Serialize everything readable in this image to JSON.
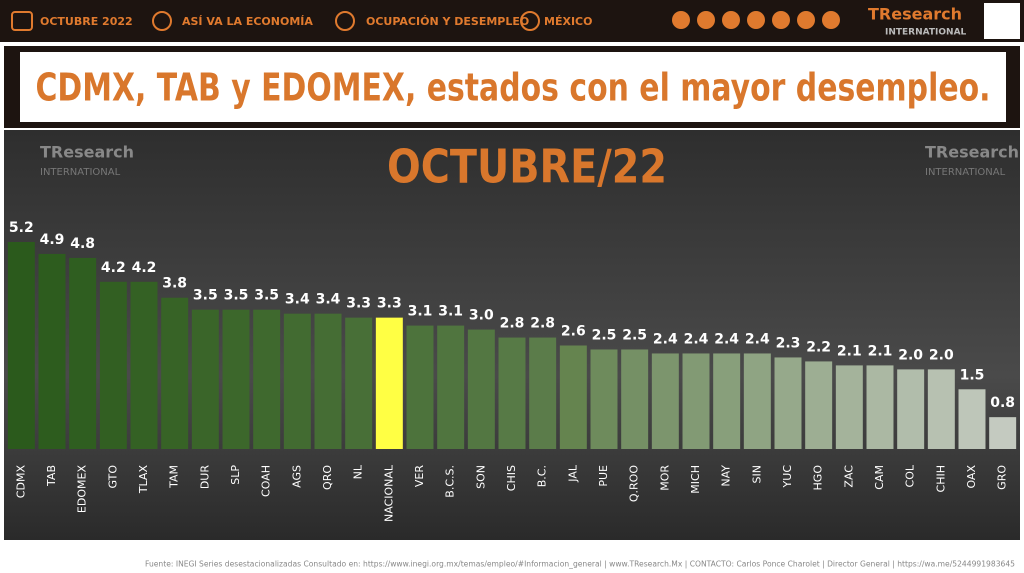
{
  "header": {
    "date": "OCTUBRE 2022",
    "section": "ASÍ VA LA ECONOMÍA",
    "topic": "OCUPACIÓN Y DESEMPLEO",
    "country": "MÉXICO",
    "brand": "TResearch",
    "brand_sub": "INTERNATIONAL"
  },
  "chart_data": {
    "type": "bar",
    "title": "CDMX, TAB y EDOMEX, estados con el mayor desempleo.",
    "subtitle": "OCTUBRE/22",
    "categories": [
      "CDMX",
      "TAB",
      "EDOMEX",
      "GTO",
      "TLAX",
      "TAM",
      "DUR",
      "SLP",
      "COAH",
      "AGS",
      "QRO",
      "NL",
      "NACIONAL",
      "VER",
      "B.C.S.",
      "SON",
      "CHIS",
      "B.C.",
      "JAL",
      "PUE",
      "Q.ROO",
      "MOR",
      "MICH",
      "NAY",
      "SIN",
      "YUC",
      "HGO",
      "ZAC",
      "CAM",
      "COL",
      "CHIH",
      "OAX",
      "GRO"
    ],
    "values": [
      5.2,
      4.9,
      4.8,
      4.2,
      4.2,
      3.8,
      3.5,
      3.5,
      3.5,
      3.4,
      3.4,
      3.3,
      3.3,
      3.1,
      3.1,
      3.0,
      2.8,
      2.8,
      2.6,
      2.5,
      2.5,
      2.4,
      2.4,
      2.4,
      2.4,
      2.3,
      2.2,
      2.1,
      2.1,
      2.0,
      2.0,
      1.5,
      0.8
    ],
    "value_labels": [
      "5.2",
      "4.9",
      "4.8",
      "4.2",
      "4.2",
      "3.8",
      "3.5",
      "3.5",
      "3.5",
      "3.4",
      "3.4",
      "3.3",
      "3.3",
      "3.1",
      "3.1",
      "3.0",
      "2.8",
      "2.8",
      "2.6",
      "2.5",
      "2.5",
      "2.4",
      "2.4",
      "2.4",
      "2.4",
      "2.3",
      "2.2",
      "2.1",
      "2.1",
      "2.0",
      "2.0",
      "1.5",
      "0.8"
    ],
    "colors": [
      "#2b5a1c",
      "#2d5c1e",
      "#2f5e20",
      "#325f22",
      "#346124",
      "#376326",
      "#3a6529",
      "#3c672b",
      "#3f692e",
      "#426b31",
      "#456d34",
      "#486f37",
      "#ffff44",
      "#4d733c",
      "#50753f",
      "#537742",
      "#577a46",
      "#5b7c4a",
      "#65844f",
      "#6e8b5c",
      "#759065",
      "#7c956d",
      "#829a74",
      "#889f7b",
      "#8fa483",
      "#96a98b",
      "#9dae93",
      "#a4b39b",
      "#abb8a3",
      "#b1bdab",
      "#b7c1b1",
      "#bec6b9",
      "#c4cac0"
    ],
    "ylim": [
      0,
      5.2
    ]
  },
  "footer": {
    "source": "Fuente: INEGI Series desestacionalizadas Consultado en: https://www.inegi.org.mx/temas/empleo/#Informacion_general | www.TResearch.Mx | CONTACTO: Carlos Ponce Charolet | Director General | https://wa.me/5244991983645"
  }
}
